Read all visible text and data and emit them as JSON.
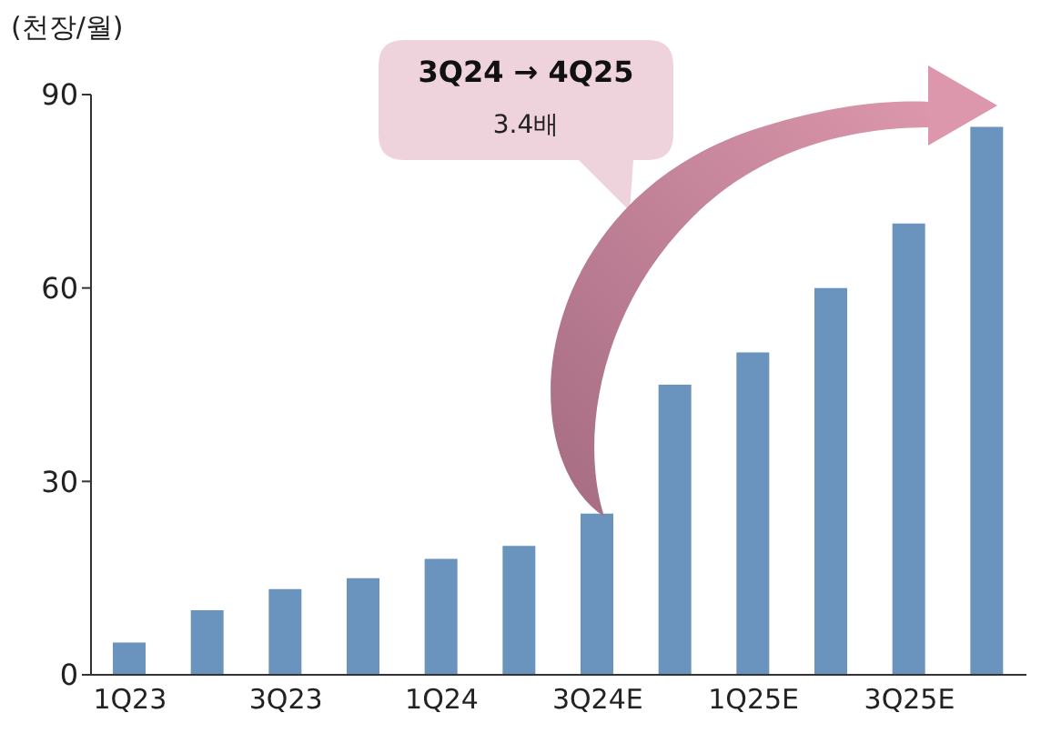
{
  "chart_data": {
    "type": "bar",
    "ylabel": "(천장/월)",
    "categories": [
      "1Q23",
      null,
      "3Q23",
      null,
      "1Q24",
      null,
      "3Q24E",
      null,
      "1Q25E",
      null,
      "3Q25E",
      null
    ],
    "values": [
      5,
      10,
      13.3,
      15,
      18,
      20,
      25,
      45,
      50,
      60,
      70,
      85
    ],
    "color": "#6a93bd",
    "ylim": [
      0,
      90
    ],
    "yticks": [
      0,
      30,
      60,
      90
    ],
    "annotations": [
      "3Q24 → 4Q25",
      "3.4배"
    ]
  }
}
